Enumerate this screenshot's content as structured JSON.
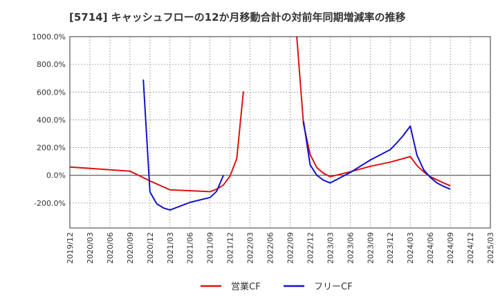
{
  "chart_data": {
    "type": "line",
    "title": "[5714]  キャッシュフローの12か月移動合計の対前年同期増減率の推移",
    "ylim": [
      -380,
      1000
    ],
    "yticks": [
      -200,
      0,
      200,
      400,
      600,
      800,
      1000
    ],
    "ytick_labels": [
      "-200.0%",
      "0.0%",
      "200.0%",
      "400.0%",
      "600.0%",
      "800.0%",
      "1000.0%"
    ],
    "xticks": [
      "2019/12",
      "2020/03",
      "2020/06",
      "2020/09",
      "2020/12",
      "2021/03",
      "2021/06",
      "2021/09",
      "2021/12",
      "2022/03",
      "2022/06",
      "2022/09",
      "2022/12",
      "2023/03",
      "2023/06",
      "2023/09",
      "2023/12",
      "2024/03",
      "2024/06",
      "2024/09",
      "2024/12",
      "2025/03"
    ],
    "grid": true,
    "legend_position": "bottom",
    "series": [
      {
        "name": "営業CF",
        "color": "#dd1111",
        "segments": [
          [
            {
              "x": "2019/12",
              "y": 60
            },
            {
              "x": "2020/09",
              "y": 30
            },
            {
              "x": "2020/12",
              "y": -40
            },
            {
              "x": "2021/03",
              "y": -105
            },
            {
              "x": "2021/09",
              "y": -118
            },
            {
              "x": "2021/10",
              "y": -100
            },
            {
              "x": "2021/11",
              "y": -70
            },
            {
              "x": "2021/12",
              "y": -5
            },
            {
              "x": "2022/01",
              "y": 120
            },
            {
              "x": "2022/02",
              "y": 605
            }
          ],
          [
            {
              "x": "2022/10",
              "y": 1000
            },
            {
              "x": "2022/11",
              "y": 370
            },
            {
              "x": "2022/12",
              "y": 150
            },
            {
              "x": "2023/01",
              "y": 55
            },
            {
              "x": "2023/02",
              "y": 15
            },
            {
              "x": "2023/03",
              "y": -10
            },
            {
              "x": "2023/06",
              "y": 25
            },
            {
              "x": "2023/09",
              "y": 65
            },
            {
              "x": "2023/12",
              "y": 95
            },
            {
              "x": "2024/03",
              "y": 135
            },
            {
              "x": "2024/04",
              "y": 70
            },
            {
              "x": "2024/05",
              "y": 25
            },
            {
              "x": "2024/06",
              "y": -10
            },
            {
              "x": "2024/08",
              "y": -55
            },
            {
              "x": "2024/09",
              "y": -75
            }
          ]
        ]
      },
      {
        "name": "フリーCF",
        "color": "#1111cc",
        "segments": [
          [
            {
              "x": "2020/11",
              "y": 690
            },
            {
              "x": "2020/12",
              "y": -120
            },
            {
              "x": "2021/01",
              "y": -205
            },
            {
              "x": "2021/02",
              "y": -235
            },
            {
              "x": "2021/03",
              "y": -250
            },
            {
              "x": "2021/06",
              "y": -195
            },
            {
              "x": "2021/09",
              "y": -160
            },
            {
              "x": "2021/10",
              "y": -115
            },
            {
              "x": "2021/11",
              "y": 0
            }
          ],
          [
            {
              "x": "2022/11",
              "y": 390
            },
            {
              "x": "2022/12",
              "y": 75
            },
            {
              "x": "2023/01",
              "y": 0
            },
            {
              "x": "2023/02",
              "y": -35
            },
            {
              "x": "2023/03",
              "y": -55
            },
            {
              "x": "2023/06",
              "y": 20
            },
            {
              "x": "2023/09",
              "y": 110
            },
            {
              "x": "2023/12",
              "y": 185
            },
            {
              "x": "2024/01",
              "y": 235
            },
            {
              "x": "2024/02",
              "y": 290
            },
            {
              "x": "2024/03",
              "y": 355
            },
            {
              "x": "2024/04",
              "y": 145
            },
            {
              "x": "2024/05",
              "y": 40
            },
            {
              "x": "2024/06",
              "y": -15
            },
            {
              "x": "2024/07",
              "y": -55
            },
            {
              "x": "2024/08",
              "y": -80
            },
            {
              "x": "2024/09",
              "y": -100
            }
          ]
        ]
      }
    ]
  }
}
